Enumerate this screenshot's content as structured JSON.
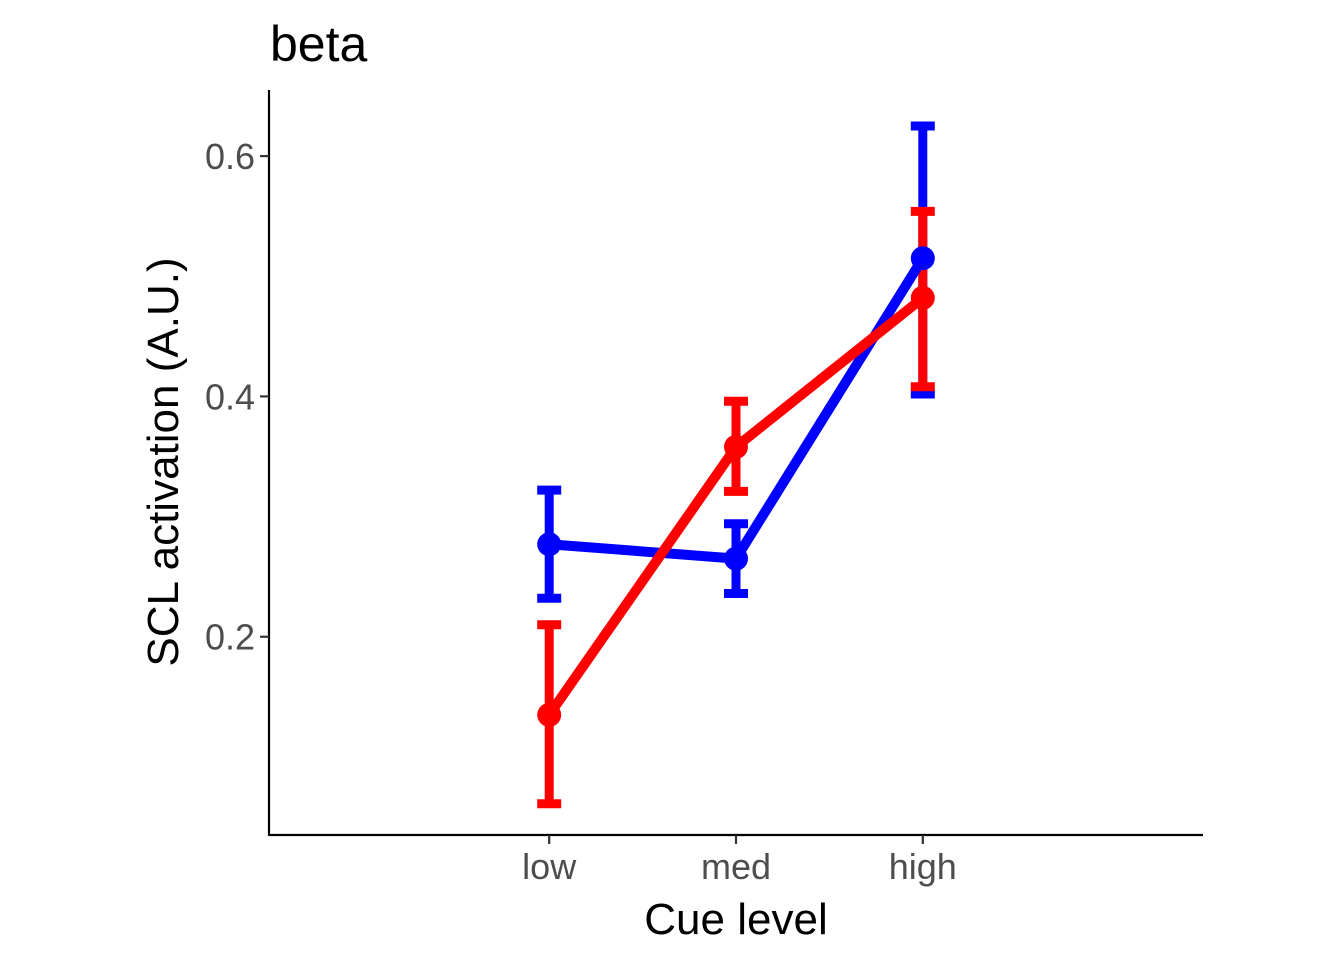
{
  "chart_data": {
    "type": "line",
    "title": "beta",
    "xlabel": "Cue level",
    "ylabel": "SCL activation (A.U.)",
    "categories": [
      "low",
      "med",
      "high"
    ],
    "y_ticks": [
      0.2,
      0.4,
      0.6
    ],
    "y_tick_labels": [
      "0.2",
      "0.4",
      "0.6"
    ],
    "ylim": [
      0.035,
      0.655
    ],
    "grid": false,
    "legend": "none",
    "series": [
      {
        "color": "#0000ff",
        "values": [
          0.277,
          0.265,
          0.515
        ],
        "error_low": [
          0.232,
          0.236,
          0.402
        ],
        "error_high": [
          0.322,
          0.294,
          0.625
        ]
      },
      {
        "color": "#ff0000",
        "values": [
          0.135,
          0.358,
          0.482
        ],
        "error_low": [
          0.061,
          0.321,
          0.408
        ],
        "error_high": [
          0.21,
          0.396,
          0.554
        ]
      }
    ]
  }
}
